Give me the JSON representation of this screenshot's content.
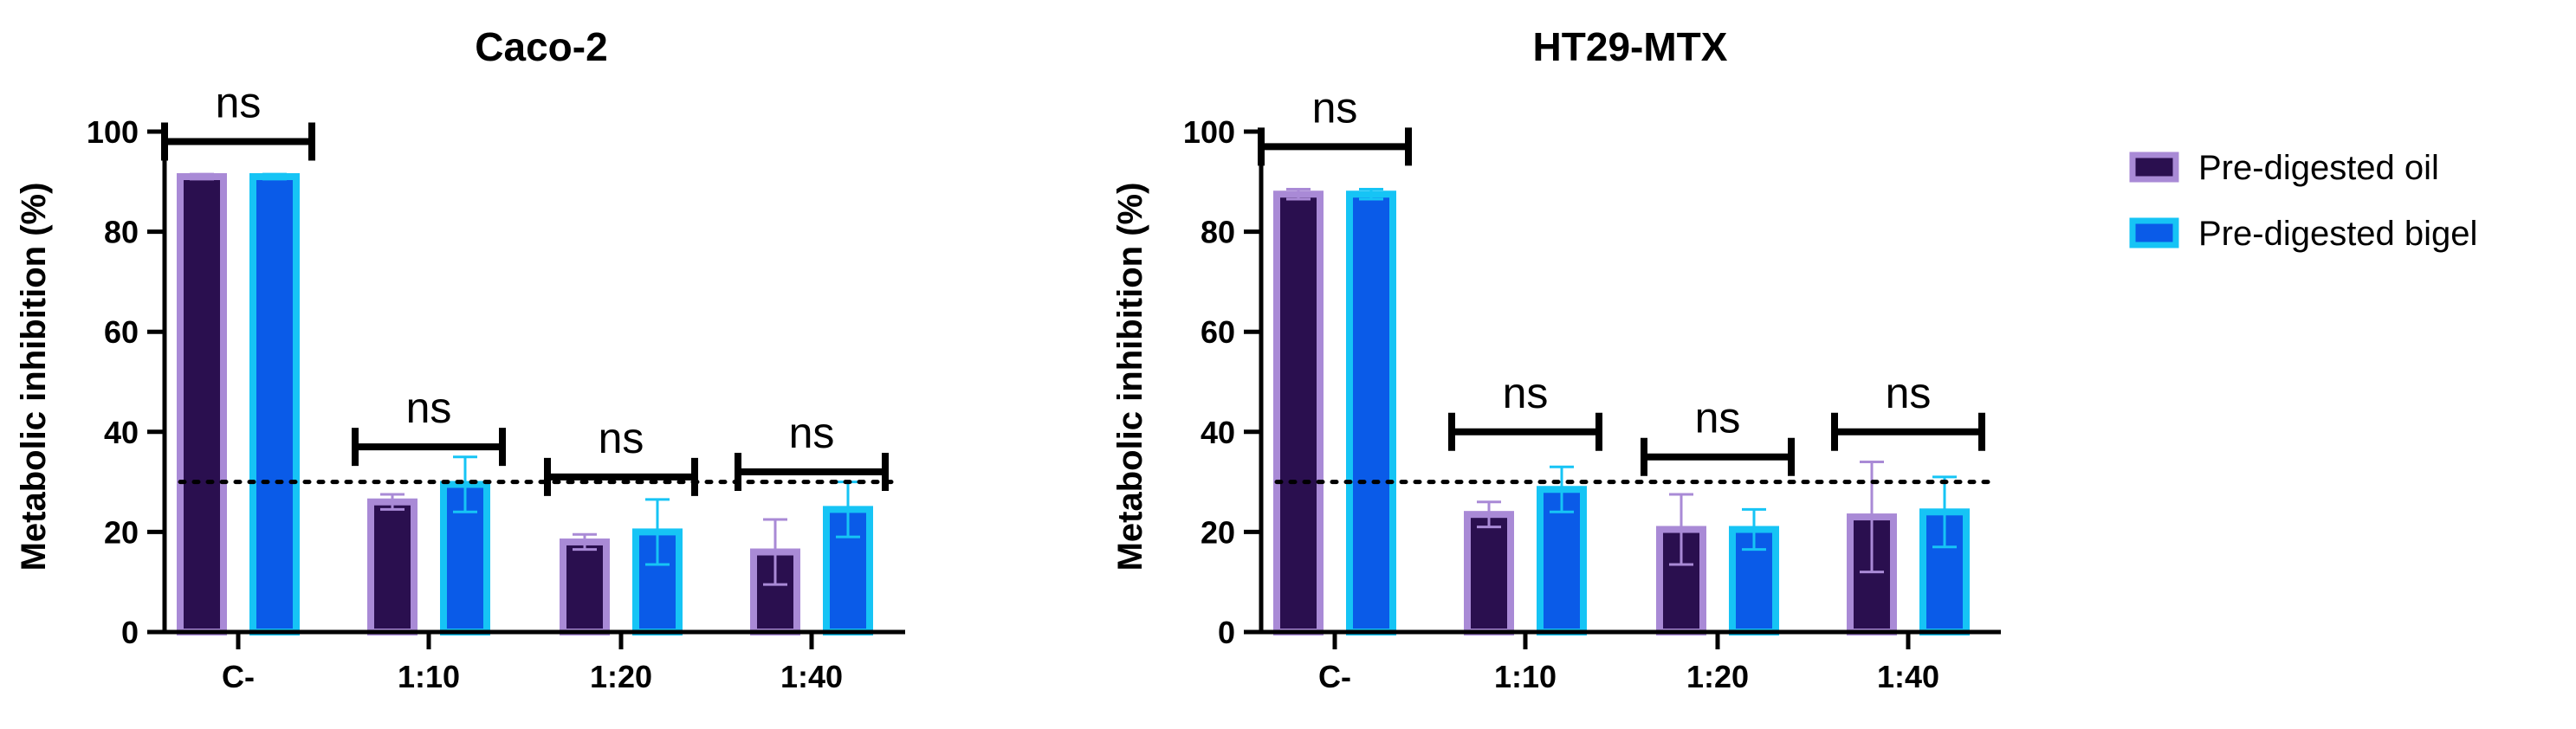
{
  "colors": {
    "oil_fill": "#2a0f4f",
    "oil_edge": "#a98ad6",
    "bigel_fill": "#0a5be8",
    "bigel_edge": "#16c4f5",
    "axis": "#000000",
    "threshold": "#000000"
  },
  "legend": {
    "placement": "right",
    "items": [
      {
        "label": "Pre-digested oil",
        "series": "oil"
      },
      {
        "label": "Pre-digested bigel",
        "series": "bigel"
      }
    ]
  },
  "chart_data": [
    {
      "type": "bar",
      "title": "Caco-2",
      "ylabel": "Metabolic inhibition (%)",
      "ylim": [
        0,
        100
      ],
      "yticks": [
        "0",
        "20",
        "40",
        "60",
        "80",
        "100"
      ],
      "categories": [
        "C-",
        "1:10",
        "1:20",
        "1:40"
      ],
      "threshold": 30,
      "series": [
        {
          "name": "Pre-digested oil",
          "key": "oil",
          "values": [
            91,
            26,
            18,
            16
          ],
          "errors": [
            0.5,
            1.5,
            1.5,
            6.5
          ]
        },
        {
          "name": "Pre-digested bigel",
          "key": "bigel",
          "values": [
            91,
            29.5,
            20,
            24.5
          ],
          "errors": [
            0.5,
            5.5,
            6.5,
            5.5
          ]
        }
      ],
      "significance": [
        {
          "label": "ns",
          "bracket_y": 98
        },
        {
          "label": "ns",
          "bracket_y": 37
        },
        {
          "label": "ns",
          "bracket_y": 31
        },
        {
          "label": "ns",
          "bracket_y": 32
        }
      ]
    },
    {
      "type": "bar",
      "title": "HT29-MTX",
      "ylabel": "Metabolic inhibition (%)",
      "ylim": [
        0,
        100
      ],
      "yticks": [
        "0",
        "20",
        "40",
        "60",
        "80",
        "100"
      ],
      "categories": [
        "C-",
        "1:10",
        "1:20",
        "1:40"
      ],
      "threshold": 30,
      "series": [
        {
          "name": "Pre-digested oil",
          "key": "oil",
          "values": [
            87.5,
            23.5,
            20.5,
            23
          ],
          "errors": [
            1,
            2.5,
            7,
            11
          ]
        },
        {
          "name": "Pre-digested bigel",
          "key": "bigel",
          "values": [
            87.5,
            28.5,
            20.5,
            24
          ],
          "errors": [
            1,
            4.5,
            4,
            7
          ]
        }
      ],
      "significance": [
        {
          "label": "ns",
          "bracket_y": 97
        },
        {
          "label": "ns",
          "bracket_y": 40
        },
        {
          "label": "ns",
          "bracket_y": 35
        },
        {
          "label": "ns",
          "bracket_y": 40
        }
      ]
    }
  ]
}
